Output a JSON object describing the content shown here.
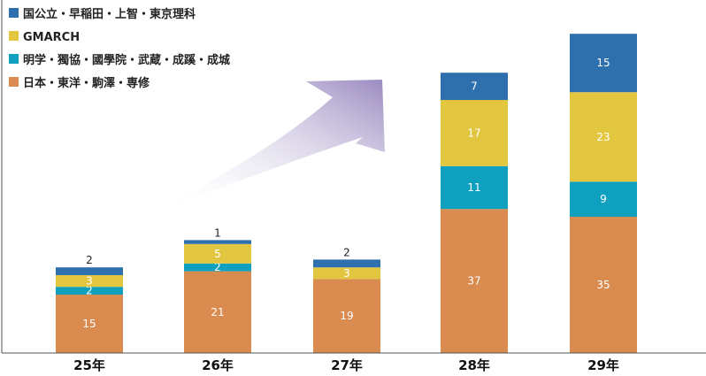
{
  "chart_data": {
    "type": "bar",
    "stacked": true,
    "categories": [
      "25年",
      "26年",
      "27年",
      "28年",
      "29年"
    ],
    "series": [
      {
        "name": "日本・東洋・駒澤・専修",
        "color": "#d98b50",
        "values": [
          15,
          21,
          19,
          37,
          35
        ]
      },
      {
        "name": "明学・獨協・國學院・武蔵・成蹊・成城",
        "color": "#0f9fbf",
        "values": [
          2,
          2,
          0,
          11,
          9
        ]
      },
      {
        "name": "GMARCH",
        "color": "#e3c640",
        "values": [
          3,
          5,
          3,
          17,
          23
        ]
      },
      {
        "name": "国公立・早稲田・上智・東京理科",
        "color": "#2e6fae",
        "values": [
          2,
          1,
          2,
          7,
          15
        ]
      }
    ],
    "legend_order": [
      3,
      2,
      1,
      0
    ],
    "legend_position": "top-left",
    "ylim": [
      0,
      80
    ],
    "grid": false,
    "title": "",
    "xlabel": "",
    "ylabel": ""
  }
}
